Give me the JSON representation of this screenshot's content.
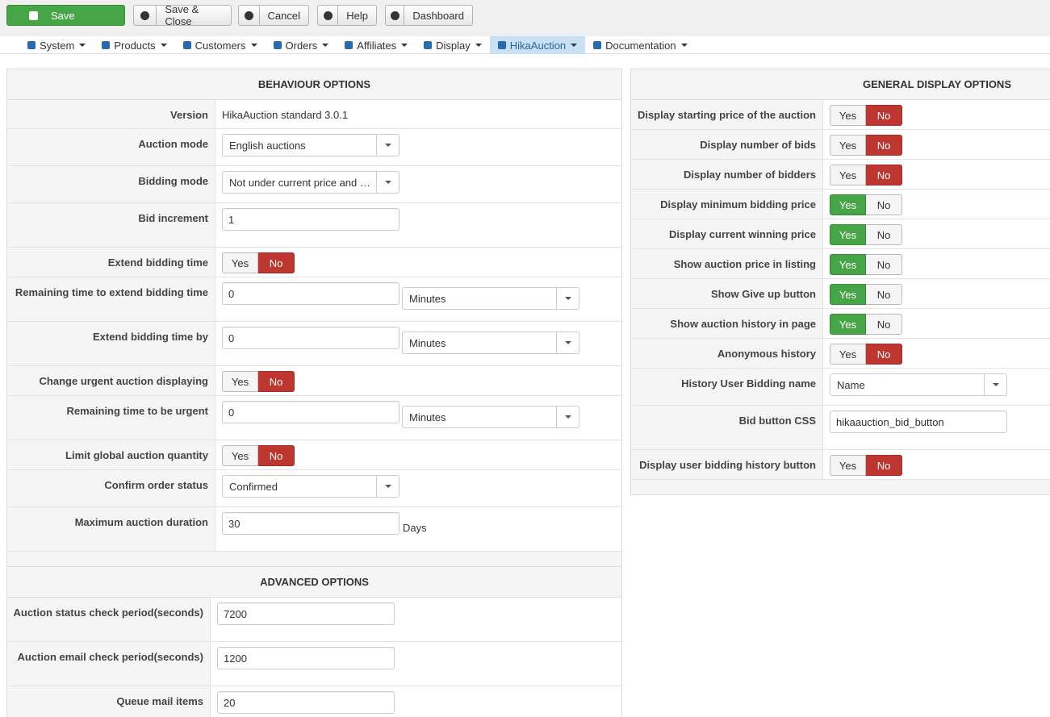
{
  "toolbar": [
    "Save",
    "Save & Close",
    "Cancel",
    "Help",
    "Dashboard"
  ],
  "menu": [
    "System",
    "Products",
    "Customers",
    "Orders",
    "Affiliates",
    "Display",
    "HikaAuction",
    "Documentation"
  ],
  "menu_active": 6,
  "behaviour": {
    "title": "BEHAVIOUR OPTIONS",
    "rows": [
      {
        "label": "Version",
        "text": "HikaAuction standard 3.0.1"
      },
      {
        "label": "Auction mode",
        "select": "English auctions"
      },
      {
        "label": "Bidding mode",
        "select": "Not under current price and …"
      },
      {
        "label": "Bid increment",
        "input": "1"
      },
      {
        "label": "Extend bidding time",
        "toggle": [
          "Yes",
          "No"
        ],
        "selected": 1
      },
      {
        "label": "Remaining time to extend bidding time",
        "input": "0",
        "select": "Minutes"
      },
      {
        "label": "Extend bidding time by",
        "input": "0",
        "select": "Minutes"
      },
      {
        "label": "Change urgent auction displaying",
        "toggle": [
          "Yes",
          "No"
        ],
        "selected": 1
      },
      {
        "label": "Remaining time to be urgent",
        "input": "0",
        "select": "Minutes"
      },
      {
        "label": "Limit global auction quantity",
        "toggle": [
          "Yes",
          "No"
        ],
        "selected": 1
      },
      {
        "label": "Confirm order status",
        "select": "Confirmed"
      },
      {
        "label": "Maximum auction duration",
        "input": "30",
        "unit": "Days"
      }
    ]
  },
  "advanced": {
    "title": "ADVANCED OPTIONS",
    "rows": [
      {
        "label": "Auction status check period(seconds)",
        "input": "7200"
      },
      {
        "label": "Auction email check period(seconds)",
        "input": "1200"
      },
      {
        "label": "Queue mail items",
        "input": "20"
      }
    ]
  },
  "general": {
    "title": "GENERAL DISPLAY OPTIONS",
    "rows": [
      {
        "label": "Display starting price of the auction",
        "toggle": [
          "Yes",
          "No"
        ],
        "selected": 1
      },
      {
        "label": "Display number of bids",
        "toggle": [
          "Yes",
          "No"
        ],
        "selected": 1
      },
      {
        "label": "Display number of bidders",
        "toggle": [
          "Yes",
          "No"
        ],
        "selected": 1
      },
      {
        "label": "Display minimum bidding price",
        "toggle": [
          "Yes",
          "No"
        ],
        "selected": 0
      },
      {
        "label": "Display current winning price",
        "toggle": [
          "Yes",
          "No"
        ],
        "selected": 0
      },
      {
        "label": "Show auction price in listing",
        "toggle": [
          "Yes",
          "No"
        ],
        "selected": 0
      },
      {
        "label": "Show Give up button",
        "toggle": [
          "Yes",
          "No"
        ],
        "selected": 0
      },
      {
        "label": "Show auction history in page",
        "toggle": [
          "Yes",
          "No"
        ],
        "selected": 0
      },
      {
        "label": "Anonymous history",
        "toggle": [
          "Yes",
          "No"
        ],
        "selected": 1
      },
      {
        "label": "History User Bidding name",
        "select": "Name"
      },
      {
        "label": "Bid button CSS",
        "input": "hikaauction_bid_button"
      },
      {
        "label": "Display user bidding history button",
        "toggle": [
          "Yes",
          "No"
        ],
        "selected": 1
      }
    ]
  }
}
